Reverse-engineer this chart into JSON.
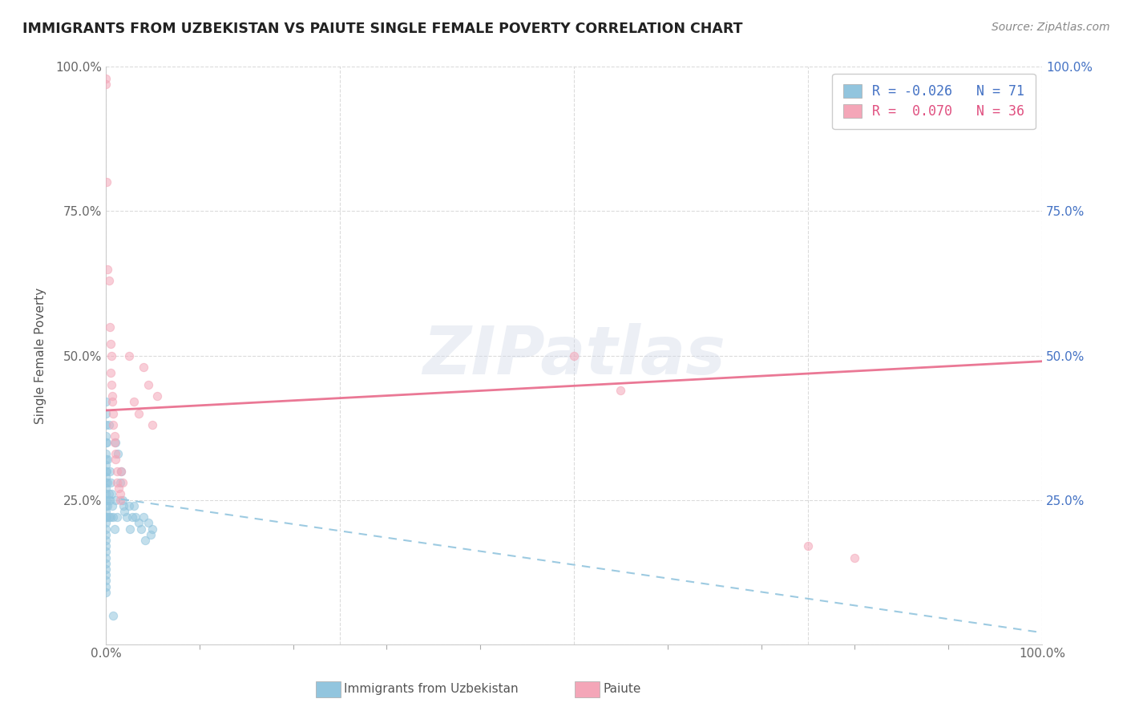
{
  "title": "IMMIGRANTS FROM UZBEKISTAN VS PAIUTE SINGLE FEMALE POVERTY CORRELATION CHART",
  "source": "Source: ZipAtlas.com",
  "ylabel": "Single Female Poverty",
  "legend_bottom": [
    "Immigrants from Uzbekistan",
    "Paiute"
  ],
  "r_uzbekistan": -0.026,
  "n_uzbekistan": 71,
  "r_paiute": 0.07,
  "n_paiute": 36,
  "color_uzbekistan": "#92c5de",
  "color_paiute": "#f4a6b8",
  "watermark_text": "ZIPatlas",
  "uzbekistan_points": [
    [
      0.0,
      0.42
    ],
    [
      0.0,
      0.4
    ],
    [
      0.0,
      0.38
    ],
    [
      0.0,
      0.36
    ],
    [
      0.0,
      0.35
    ],
    [
      0.0,
      0.33
    ],
    [
      0.0,
      0.32
    ],
    [
      0.0,
      0.31
    ],
    [
      0.0,
      0.3
    ],
    [
      0.0,
      0.29
    ],
    [
      0.0,
      0.28
    ],
    [
      0.0,
      0.27
    ],
    [
      0.0,
      0.26
    ],
    [
      0.0,
      0.25
    ],
    [
      0.0,
      0.24
    ],
    [
      0.0,
      0.23
    ],
    [
      0.0,
      0.22
    ],
    [
      0.0,
      0.21
    ],
    [
      0.0,
      0.2
    ],
    [
      0.0,
      0.19
    ],
    [
      0.0,
      0.18
    ],
    [
      0.0,
      0.17
    ],
    [
      0.0,
      0.16
    ],
    [
      0.0,
      0.15
    ],
    [
      0.0,
      0.14
    ],
    [
      0.0,
      0.13
    ],
    [
      0.0,
      0.12
    ],
    [
      0.0,
      0.11
    ],
    [
      0.0,
      0.1
    ],
    [
      0.0,
      0.09
    ],
    [
      0.001,
      0.35
    ],
    [
      0.001,
      0.3
    ],
    [
      0.001,
      0.25
    ],
    [
      0.001,
      0.22
    ],
    [
      0.002,
      0.32
    ],
    [
      0.002,
      0.28
    ],
    [
      0.002,
      0.24
    ],
    [
      0.003,
      0.38
    ],
    [
      0.003,
      0.26
    ],
    [
      0.003,
      0.22
    ],
    [
      0.004,
      0.3
    ],
    [
      0.004,
      0.25
    ],
    [
      0.005,
      0.28
    ],
    [
      0.005,
      0.22
    ],
    [
      0.006,
      0.26
    ],
    [
      0.007,
      0.24
    ],
    [
      0.008,
      0.22
    ],
    [
      0.009,
      0.2
    ],
    [
      0.01,
      0.35
    ],
    [
      0.01,
      0.25
    ],
    [
      0.012,
      0.22
    ],
    [
      0.013,
      0.33
    ],
    [
      0.015,
      0.28
    ],
    [
      0.016,
      0.3
    ],
    [
      0.018,
      0.25
    ],
    [
      0.019,
      0.24
    ],
    [
      0.02,
      0.23
    ],
    [
      0.022,
      0.22
    ],
    [
      0.025,
      0.24
    ],
    [
      0.026,
      0.2
    ],
    [
      0.028,
      0.22
    ],
    [
      0.03,
      0.24
    ],
    [
      0.032,
      0.22
    ],
    [
      0.035,
      0.21
    ],
    [
      0.038,
      0.2
    ],
    [
      0.04,
      0.22
    ],
    [
      0.042,
      0.18
    ],
    [
      0.045,
      0.21
    ],
    [
      0.048,
      0.19
    ],
    [
      0.05,
      0.2
    ],
    [
      0.008,
      0.05
    ]
  ],
  "paiute_points": [
    [
      0.0,
      0.98
    ],
    [
      0.0,
      0.97
    ],
    [
      0.001,
      0.8
    ],
    [
      0.002,
      0.65
    ],
    [
      0.003,
      0.63
    ],
    [
      0.004,
      0.55
    ],
    [
      0.005,
      0.52
    ],
    [
      0.005,
      0.47
    ],
    [
      0.006,
      0.45
    ],
    [
      0.006,
      0.5
    ],
    [
      0.007,
      0.43
    ],
    [
      0.007,
      0.42
    ],
    [
      0.008,
      0.4
    ],
    [
      0.008,
      0.38
    ],
    [
      0.009,
      0.36
    ],
    [
      0.009,
      0.35
    ],
    [
      0.01,
      0.33
    ],
    [
      0.01,
      0.32
    ],
    [
      0.012,
      0.3
    ],
    [
      0.012,
      0.28
    ],
    [
      0.014,
      0.27
    ],
    [
      0.015,
      0.26
    ],
    [
      0.015,
      0.25
    ],
    [
      0.016,
      0.3
    ],
    [
      0.018,
      0.28
    ],
    [
      0.025,
      0.5
    ],
    [
      0.03,
      0.42
    ],
    [
      0.035,
      0.4
    ],
    [
      0.04,
      0.48
    ],
    [
      0.045,
      0.45
    ],
    [
      0.05,
      0.38
    ],
    [
      0.055,
      0.43
    ],
    [
      0.5,
      0.5
    ],
    [
      0.55,
      0.44
    ],
    [
      0.75,
      0.17
    ],
    [
      0.8,
      0.15
    ]
  ],
  "xmin": 0.0,
  "xmax": 1.0,
  "ymin": 0.0,
  "ymax": 1.0,
  "uzb_line_x0": 0.0,
  "uzb_line_y0": 0.255,
  "uzb_line_x1": 1.0,
  "uzb_line_y1": 0.02,
  "pai_line_x0": 0.0,
  "pai_line_y0": 0.405,
  "pai_line_x1": 1.0,
  "pai_line_y1": 0.49
}
